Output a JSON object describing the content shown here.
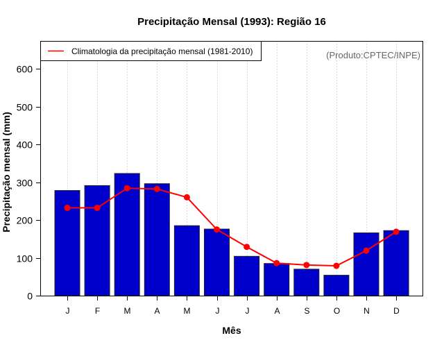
{
  "chart_data": {
    "type": "bar",
    "title": "Precipitação Mensal (1993): Região 16",
    "xlabel": "Mês",
    "ylabel": "Precipitação mensal (mm)",
    "categories": [
      "J",
      "F",
      "M",
      "A",
      "M",
      "J",
      "J",
      "A",
      "S",
      "O",
      "N",
      "D"
    ],
    "ylim": [
      0,
      660
    ],
    "yticks": [
      0,
      100,
      200,
      300,
      400,
      500,
      600
    ],
    "grid": "vertical-dotted",
    "series": [
      {
        "name": "Precipitação mensal (1993)",
        "type": "bar",
        "color": "#0000CD",
        "values": [
          278,
          291,
          323,
          296,
          185,
          176,
          104,
          85,
          70,
          54,
          166,
          172
        ]
      },
      {
        "name": "Climatologia da precipitação mensal (1981-2010)",
        "type": "line",
        "color": "#FF0000",
        "values": [
          232,
          232,
          284,
          282,
          260,
          175,
          129,
          86,
          81,
          79,
          119,
          169
        ]
      }
    ],
    "legend": {
      "position": "top-left",
      "entries": [
        "Climatologia da precipitação mensal (1981-2010)"
      ]
    },
    "annotation": "(Produto:CPTEC/INPE)"
  }
}
